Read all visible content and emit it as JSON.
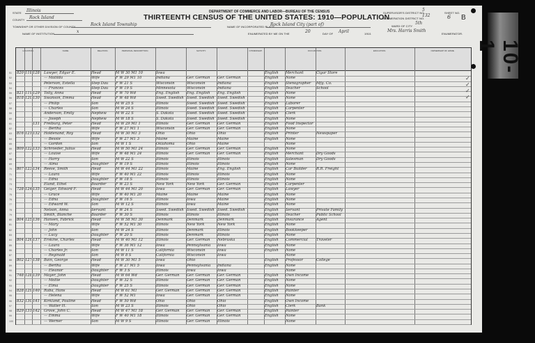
{
  "header": {
    "department": "DEPARTMENT OF COMMERCE AND LABOR—BUREAU OF THE CENSUS",
    "title": "THIRTEENTH CENSUS OF THE UNITED STATES: 1910—POPULATION",
    "state_label": "STATE",
    "state": "Illinois",
    "county_label": "COUNTY",
    "county": "Rock Island",
    "township_label": "TOWNSHIP OR OTHER DIVISION OF COUNTY",
    "township": "Rock Island Township",
    "institution_label": "NAME OF INSTITUTION",
    "institution": "x",
    "place_label": "NAME OF INCORPORATED PLACE",
    "place": "Rock Island City (part of)",
    "enumerated_label": "ENUMERATED BY ME ON THE",
    "enumerated_day": "20",
    "day_of_label": "DAY OF",
    "enumerated_month": "April",
    "year_suffix": "1910.",
    "enumerator": "Mrs. Harris Smith",
    "enumerator_label": "ENUMERATOR.",
    "supervisor_label": "SUPERVISOR'S DISTRICT NO.",
    "supervisor_no": "5",
    "ed_label": "ENUMERATION DISTRICT NO.",
    "ed_no": "132",
    "ward_label": "WARD OF CITY",
    "ward": "5th",
    "sheet_label": "SHEET NO.",
    "sheet_no": "6",
    "sheet_side": "B",
    "roll_label": "10-1"
  },
  "columns": [
    "LOCATION.",
    "NAME",
    "RELATION.",
    "PERSONAL DESCRIPTION.",
    "NATIVITY.",
    "CITIZENSHIP.",
    "",
    "OCCUPATION.",
    "EDUCATION.",
    "OWNERSHIP OF HOME."
  ],
  "rows": [
    {
      "line": "51",
      "house": "820",
      "dw": "118",
      "fam": "128",
      "name": "Lawyer, Edgar E.",
      "rel": "Head",
      "desc": "M W 30 M1 10",
      "bp": "Iowa",
      "bpf": "",
      "bpm": "",
      "lang": "English",
      "occ": "Merchant",
      "ind": "Cigar Store"
    },
    {
      "line": "52",
      "house": "",
      "dw": "",
      "fam": "",
      "name": "— Matilda",
      "rel": "Wife",
      "desc": "F W 29 M1 10",
      "bp": "Indiana",
      "bpf": "Ger. German",
      "bpm": "Ger. German",
      "lang": "English",
      "occ": "None",
      "ind": ""
    },
    {
      "line": "53",
      "house": "",
      "dw": "",
      "fam": "",
      "name": "Peterson, Estella",
      "rel": "Step Dau",
      "desc": "F W 21 S",
      "bp": "Wisconsin",
      "bpf": "Wisconsin",
      "bpm": "Indiana",
      "lang": "English",
      "occ": "Stenographer",
      "ind": "Mfg. Co."
    },
    {
      "line": "54",
      "house": "",
      "dw": "",
      "fam": "",
      "name": "— Frances",
      "rel": "Step Dau",
      "desc": "F W 19 S",
      "bp": "Minnesota",
      "bpf": "Wisconsin",
      "bpm": "Indiana",
      "lang": "English",
      "occ": "Teacher",
      "ind": "School"
    },
    {
      "line": "55",
      "house": "821",
      "dw": "119",
      "fam": "129",
      "name": "Tolly, Anna",
      "rel": "Head",
      "desc": "F W 70 Wd",
      "bp": "Eng. English",
      "bpf": "Eng. English",
      "bpm": "Eng. English",
      "lang": "English",
      "occ": "None",
      "ind": ""
    },
    {
      "line": "56",
      "house": "818",
      "dw": "120",
      "fam": "130",
      "name": "Swanson, Emma",
      "rel": "Head",
      "desc": "F W 48 Wd",
      "bp": "Swed. Swedish",
      "bpf": "Swed. Swedish",
      "bpm": "Swed. Swedish",
      "lang": "English",
      "occ": "None",
      "ind": ""
    },
    {
      "line": "57",
      "house": "",
      "dw": "",
      "fam": "",
      "name": "— Philip",
      "rel": "Son",
      "desc": "M W 25 S",
      "bp": "Illinois",
      "bpf": "Swed. Swedish",
      "bpm": "Swed. Swedish",
      "lang": "English",
      "occ": "Laborer",
      "ind": ""
    },
    {
      "line": "58",
      "house": "",
      "dw": "",
      "fam": "",
      "name": "— Charles",
      "rel": "Son",
      "desc": "M W 24 S",
      "bp": "Illinois",
      "bpf": "Swed. Swedish",
      "bpm": "Swed. Swedish",
      "lang": "English",
      "occ": "Carpenter",
      "ind": ""
    },
    {
      "line": "59",
      "house": "",
      "dw": "",
      "fam": "",
      "name": "Anderson, Emily",
      "rel": "Nephew",
      "desc": "M W 22 S",
      "bp": "S. Dakota",
      "bpf": "Swed. Swedish",
      "bpm": "Swed. Swedish",
      "lang": "English",
      "occ": "Clerk",
      "ind": ""
    },
    {
      "line": "60",
      "house": "",
      "dw": "",
      "fam": "",
      "name": "— Joseph",
      "rel": "Nephew",
      "desc": "M W 18 S",
      "bp": "S. Dakota",
      "bpf": "Swed. Swedish",
      "bpm": "Swed. Swedish",
      "lang": "English",
      "occ": "None",
      "ind": ""
    },
    {
      "line": "61",
      "house": "",
      "dw": "",
      "fam": "131",
      "name": "Freiburg, Peter",
      "rel": "Head",
      "desc": "M W 29 M1 1",
      "bp": "Illinois",
      "bpf": "Ger. German",
      "bpm": "Ger. German",
      "lang": "English",
      "occ": "Food Inspector",
      "ind": ""
    },
    {
      "line": "62",
      "house": "",
      "dw": "",
      "fam": "",
      "name": "— Bertha",
      "rel": "Wife",
      "desc": "F W 27 M1 1",
      "bp": "Wisconsin",
      "bpf": "Ger. German",
      "bpm": "Ger. German",
      "lang": "English",
      "occ": "None",
      "ind": ""
    },
    {
      "line": "63",
      "house": "816",
      "dw": "121",
      "fam": "132",
      "name": "Holdenand, Roy",
      "rel": "Head",
      "desc": "M W 30 M1 3",
      "bp": "Ohio",
      "bpf": "Ohio",
      "bpm": "Ohio",
      "lang": "English",
      "occ": "Printer",
      "ind": "Newspaper"
    },
    {
      "line": "64",
      "house": "",
      "dw": "",
      "fam": "",
      "name": "— Bessie",
      "rel": "Wife",
      "desc": "F W 27 M1 3",
      "bp": "Maine",
      "bpf": "Maine",
      "bpm": "Maine",
      "lang": "English",
      "occ": "None",
      "ind": ""
    },
    {
      "line": "65",
      "house": "",
      "dw": "",
      "fam": "",
      "name": "— Gordon",
      "rel": "Son",
      "desc": "M W 1 S",
      "bp": "Oklahoma",
      "bpf": "Ohio",
      "bpm": "Maine",
      "lang": "",
      "occ": "None",
      "ind": ""
    },
    {
      "line": "66",
      "house": "809",
      "dw": "122",
      "fam": "133",
      "name": "Schroeder, Julius",
      "rel": "Head",
      "desc": "M W 50 M1 24",
      "bp": "Illinois",
      "bpf": "Ger. German",
      "bpm": "Ger. German",
      "lang": "English",
      "occ": "None",
      "ind": ""
    },
    {
      "line": "67",
      "house": "",
      "dw": "",
      "fam": "",
      "name": "— Louise",
      "rel": "Wife",
      "desc": "F W 48 M1 24",
      "bp": "Illinois",
      "bpf": "Ger. German",
      "bpm": "Ger. German",
      "lang": "English",
      "occ": "Merchant",
      "ind": "Dry Goods"
    },
    {
      "line": "68",
      "house": "",
      "dw": "",
      "fam": "",
      "name": "— Harry",
      "rel": "Son",
      "desc": "M W 22 S",
      "bp": "Illinois",
      "bpf": "Illinois",
      "bpm": "Illinois",
      "lang": "English",
      "occ": "Salesman",
      "ind": "Dry Goods"
    },
    {
      "line": "69",
      "house": "",
      "dw": "",
      "fam": "",
      "name": "— Alma",
      "rel": "Daughter",
      "desc": "F W 19 S",
      "bp": "Illinois",
      "bpf": "Illinois",
      "bpm": "Illinois",
      "lang": "English",
      "occ": "None",
      "ind": ""
    },
    {
      "line": "70",
      "house": "807",
      "dw": "123",
      "fam": "134",
      "name": "Reese, Smith",
      "rel": "Head",
      "desc": "M W 44 M1 22",
      "bp": "Illinois",
      "bpf": "Maine",
      "bpm": "Eng. English",
      "lang": "English",
      "occ": "Car Builder",
      "ind": "R.R. Freight"
    },
    {
      "line": "71",
      "house": "",
      "dw": "",
      "fam": "",
      "name": "— Laura",
      "rel": "Wife",
      "desc": "F W 40 M1 22",
      "bp": "Illinois",
      "bpf": "Illinois",
      "bpm": "Illinois",
      "lang": "English",
      "occ": "None",
      "ind": ""
    },
    {
      "line": "72",
      "house": "",
      "dw": "",
      "fam": "",
      "name": "— Edna",
      "rel": "Daughter",
      "desc": "F W 18 S",
      "bp": "Illinois",
      "bpf": "Illinois",
      "bpm": "Illinois",
      "lang": "English",
      "occ": "None",
      "ind": ""
    },
    {
      "line": "73",
      "house": "",
      "dw": "",
      "fam": "",
      "name": "Eland, Ethel",
      "rel": "Boarder",
      "desc": "F W 23 S",
      "bp": "New York",
      "bpf": "New York",
      "bpm": "Ger. German",
      "lang": "English",
      "occ": "Carpenter",
      "ind": ""
    },
    {
      "line": "74",
      "house": "728",
      "dw": "124",
      "fam": "135",
      "name": "Geiger, Edward F.",
      "rel": "Head",
      "desc": "M W 44 M1 20",
      "bp": "Iowa",
      "bpf": "Ger. German",
      "bpm": "Ger. German",
      "lang": "English",
      "occ": "Lawyer",
      "ind": ""
    },
    {
      "line": "75",
      "house": "",
      "dw": "",
      "fam": "",
      "name": "— Grace",
      "rel": "Wife",
      "desc": "F W 40 M1 20",
      "bp": "Maine",
      "bpf": "Maine",
      "bpm": "Maine",
      "lang": "English",
      "occ": "None",
      "ind": ""
    },
    {
      "line": "76",
      "house": "",
      "dw": "",
      "fam": "",
      "name": "— Edna",
      "rel": "Daughter",
      "desc": "F W 16 S",
      "bp": "Illinois",
      "bpf": "Iowa",
      "bpm": "Maine",
      "lang": "English",
      "occ": "None",
      "ind": ""
    },
    {
      "line": "77",
      "house": "",
      "dw": "",
      "fam": "",
      "name": "— Edward W.",
      "rel": "Son",
      "desc": "M W 12 S",
      "bp": "Illinois",
      "bpf": "Iowa",
      "bpm": "Maine",
      "lang": "English",
      "occ": "None",
      "ind": ""
    },
    {
      "line": "78",
      "house": "",
      "dw": "",
      "fam": "",
      "name": "Nelson, Anna",
      "rel": "Servant",
      "desc": "F W 24 S",
      "bp": "Swed. Swedish",
      "bpf": "Swed. Swedish",
      "bpm": "Swed. Swedish",
      "lang": "English",
      "occ": "Servant",
      "ind": "Private Family"
    },
    {
      "line": "79",
      "house": "",
      "dw": "",
      "fam": "",
      "name": "Smith, Blanche",
      "rel": "Boarder",
      "desc": "F W 30 S",
      "bp": "Illinois",
      "bpf": "Illinois",
      "bpm": "Illinois",
      "lang": "English",
      "occ": "Teacher",
      "ind": "Public School"
    },
    {
      "line": "80",
      "house": "804",
      "dw": "125",
      "fam": "136",
      "name": "Hansen, Fabrick",
      "rel": "Head",
      "desc": "M W 58 M1 30",
      "bp": "Denmark",
      "bpf": "Denmark",
      "bpm": "Denmark",
      "lang": "English",
      "occ": "Insurance",
      "ind": "Agent"
    },
    {
      "line": "81",
      "house": "",
      "dw": "",
      "fam": "",
      "name": "— Mary",
      "rel": "Wife",
      "desc": "F W 52 M1 30",
      "bp": "Illinois",
      "bpf": "New York",
      "bpm": "New York",
      "lang": "English",
      "occ": "None",
      "ind": ""
    },
    {
      "line": "82",
      "house": "",
      "dw": "",
      "fam": "",
      "name": "— John",
      "rel": "Son",
      "desc": "M W 24 S",
      "bp": "Illinois",
      "bpf": "Denmark",
      "bpm": "Illinois",
      "lang": "English",
      "occ": "Bookkeeper",
      "ind": ""
    },
    {
      "line": "83",
      "house": "",
      "dw": "",
      "fam": "",
      "name": "— Lucy",
      "rel": "Daughter",
      "desc": "F W 20 S",
      "bp": "Illinois",
      "bpf": "Denmark",
      "bpm": "Illinois",
      "lang": "English",
      "occ": "None",
      "ind": ""
    },
    {
      "line": "84",
      "house": "804",
      "dw": "126",
      "fam": "137",
      "name": "Erskine, Charles",
      "rel": "Head",
      "desc": "M W 40 M1 12",
      "bp": "Illinois",
      "bpf": "Ger. German",
      "bpm": "Nebraska",
      "lang": "English",
      "occ": "Commercial",
      "ind": "Traveler"
    },
    {
      "line": "85",
      "house": "",
      "dw": "",
      "fam": "",
      "name": "— Laura",
      "rel": "Wife",
      "desc": "F W 36 M1 12",
      "bp": "Iowa",
      "bpf": "Pennsylvania",
      "bpm": "Iowa",
      "lang": "English",
      "occ": "None",
      "ind": ""
    },
    {
      "line": "86",
      "house": "",
      "dw": "",
      "fam": "",
      "name": "— Charles Jr.",
      "rel": "Son",
      "desc": "M W 11 S",
      "bp": "California",
      "bpf": "Wisconsin",
      "bpm": "Iowa",
      "lang": "English",
      "occ": "None",
      "ind": ""
    },
    {
      "line": "87",
      "house": "",
      "dw": "",
      "fam": "",
      "name": "— Reginald",
      "rel": "Son",
      "desc": "M W 8 S",
      "bp": "California",
      "bpf": "Wisconsin",
      "bpm": "Iowa",
      "lang": "",
      "occ": "None",
      "ind": ""
    },
    {
      "line": "88",
      "house": "802",
      "dw": "127",
      "fam": "138",
      "name": "Bain, George",
      "rel": "Head",
      "desc": "M W 30 M1 5",
      "bp": "Iowa",
      "bpf": "Ohio",
      "bpm": "",
      "lang": "English",
      "occ": "Professor",
      "ind": "College"
    },
    {
      "line": "89",
      "house": "",
      "dw": "",
      "fam": "",
      "name": "— Bertha",
      "rel": "Wife",
      "desc": "F W 27 M1 5",
      "bp": "Iowa",
      "bpf": "Pennsylvania",
      "bpm": "Indiana",
      "lang": "English",
      "occ": "None",
      "ind": ""
    },
    {
      "line": "90",
      "house": "",
      "dw": "",
      "fam": "",
      "name": "— Eleanor",
      "rel": "Daughter",
      "desc": "F W 3 S",
      "bp": "Illinois",
      "bpf": "Iowa",
      "bpm": "Iowa",
      "lang": "",
      "occ": "None",
      "ind": ""
    },
    {
      "line": "91",
      "house": "748",
      "dw": "128",
      "fam": "139",
      "name": "Mayer, John",
      "rel": "Head",
      "desc": "M W 64 Wd",
      "bp": "Ger. German",
      "bpf": "Ger. German",
      "bpm": "Ger. German",
      "lang": "English",
      "occ": "Own Income",
      "ind": ""
    },
    {
      "line": "92",
      "house": "",
      "dw": "",
      "fam": "",
      "name": "— Mollie",
      "rel": "Daughter",
      "desc": "F W 32 S",
      "bp": "Illinois",
      "bpf": "Ger. German",
      "bpm": "Ger. German",
      "lang": "English",
      "occ": "None",
      "ind": ""
    },
    {
      "line": "93",
      "house": "",
      "dw": "",
      "fam": "",
      "name": "— Elma",
      "rel": "Daughter",
      "desc": "F W 25 S",
      "bp": "Illinois",
      "bpf": "Ger. German",
      "bpm": "Ger. German",
      "lang": "English",
      "occ": "None",
      "ind": ""
    },
    {
      "line": "94",
      "house": "828",
      "dw": "129",
      "fam": "140",
      "name": "Raba, Hans",
      "rel": "Head",
      "desc": "M W 61 M1",
      "bp": "Ger. German",
      "bpf": "Ger. German",
      "bpm": "Ger. German",
      "lang": "English",
      "occ": "Painter",
      "ind": ""
    },
    {
      "line": "95",
      "house": "",
      "dw": "",
      "fam": "",
      "name": "— Helena",
      "rel": "Wife",
      "desc": "F W 52 M1",
      "bp": "Iowa",
      "bpf": "Ger. German",
      "bpm": "Ger. German",
      "lang": "English",
      "occ": "None",
      "ind": ""
    },
    {
      "line": "96",
      "house": "832",
      "dw": "130",
      "fam": "141",
      "name": "Kirkland, Pauline",
      "rel": "Head",
      "desc": "F W 50 Wd",
      "bp": "Ohio",
      "bpf": "Ohio",
      "bpm": "Ohio",
      "lang": "English",
      "occ": "Own Income",
      "ind": ""
    },
    {
      "line": "97",
      "house": "",
      "dw": "",
      "fam": "",
      "name": "— Walter H.",
      "rel": "Son",
      "desc": "M W 23 S",
      "bp": "Illinois",
      "bpf": "Ohio",
      "bpm": "Ohio",
      "lang": "English",
      "occ": "Clerk",
      "ind": "Bank"
    },
    {
      "line": "98",
      "house": "829",
      "dw": "131",
      "fam": "142",
      "name": "Grove, John C.",
      "rel": "Head",
      "desc": "M W 47 M1 18",
      "bp": "Ger. German",
      "bpf": "Ger. German",
      "bpm": "Ger. German",
      "lang": "English",
      "occ": "Painter",
      "ind": ""
    },
    {
      "line": "99",
      "house": "",
      "dw": "",
      "fam": "",
      "name": "— Emma",
      "rel": "Wife",
      "desc": "F W 40 M1 18",
      "bp": "Illinois",
      "bpf": "Ger. German",
      "bpm": "Ger. German",
      "lang": "English",
      "occ": "None",
      "ind": ""
    },
    {
      "line": "100",
      "house": "",
      "dw": "",
      "fam": "",
      "name": "— Werner",
      "rel": "Son",
      "desc": "M W 9 S",
      "bp": "Illinois",
      "bpf": "Ger. German",
      "bpm": "Illinois",
      "lang": "",
      "occ": "None",
      "ind": ""
    }
  ]
}
